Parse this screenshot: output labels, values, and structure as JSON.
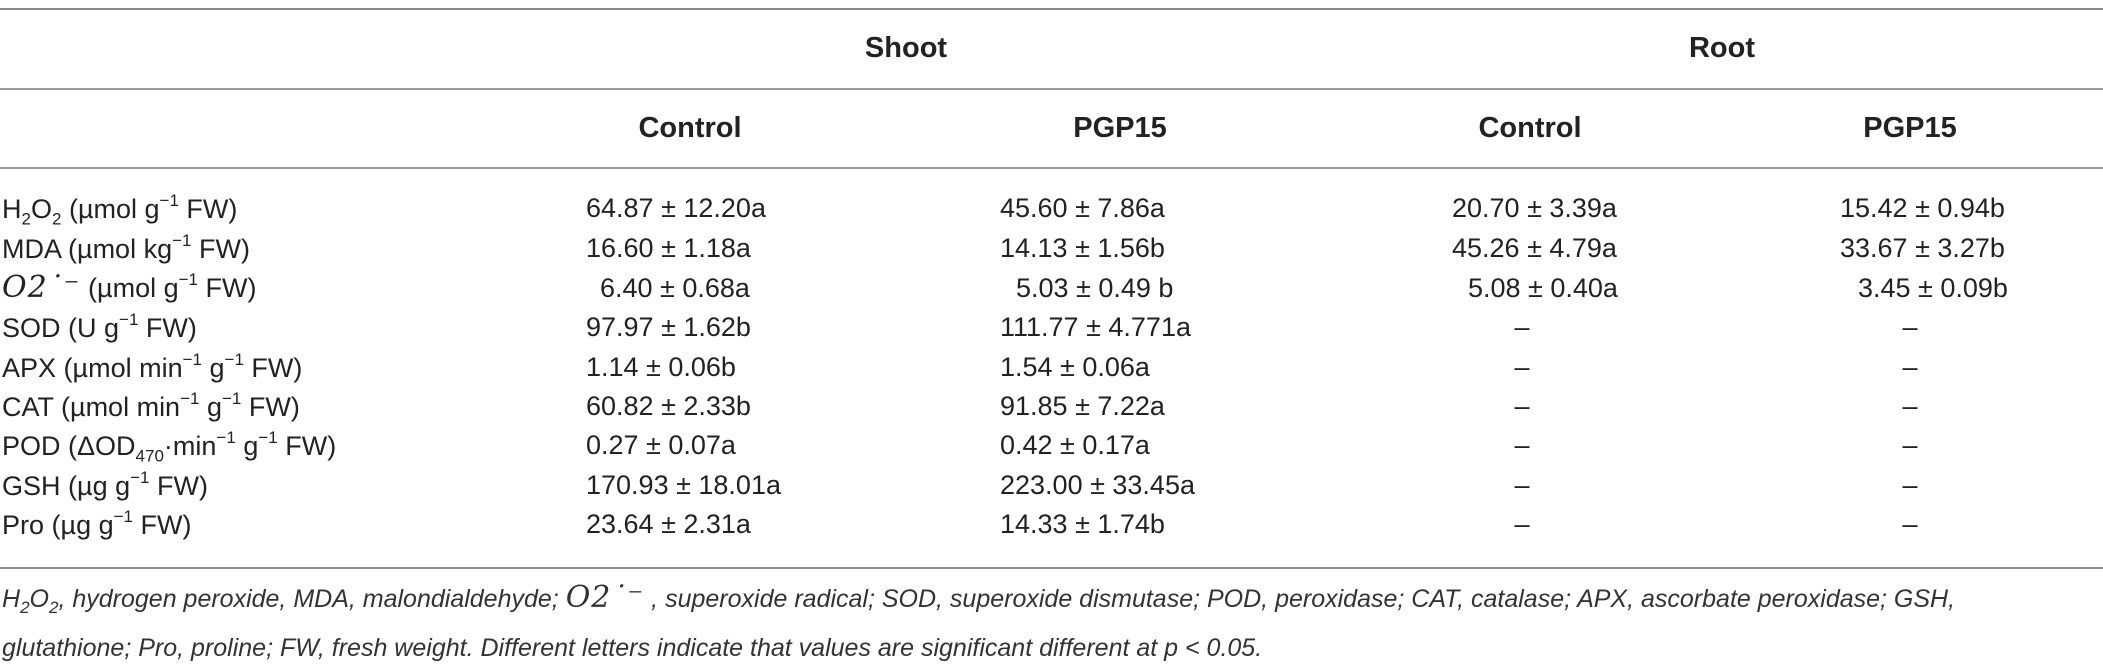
{
  "table": {
    "group_headers": [
      "Shoot",
      "Root"
    ],
    "column_headers": [
      "Control",
      "PGP15",
      "Control",
      "PGP15"
    ],
    "rows": [
      {
        "prefix": "H",
        "sub": "2",
        "mid": "O",
        "sub2": "2",
        "unit_a": " (µmol g",
        "sup": "−1",
        "unit_b": " FW)",
        "values": [
          "64.87 ± 12.20a",
          "45.60 ± 7.86a",
          "20.70 ± 3.39a",
          "15.42 ± 0.94b"
        ]
      },
      {
        "prefix": "MDA",
        "unit_a": " (µmol kg",
        "sup": "−1",
        "unit_b": " FW)",
        "values": [
          "16.60 ± 1.18a",
          "14.13 ± 1.56b",
          "45.26 ± 4.79a",
          "33.67 ± 3.27b"
        ]
      },
      {
        "prefix": "O2˙⁻",
        "unit_a": "  (µmol g",
        "sup": "−1",
        "unit_b": " FW)",
        "values": [
          "6.40 ± 0.68a",
          "5.03 ± 0.49 b",
          "5.08 ± 0.40a",
          "3.45 ± 0.09b"
        ]
      },
      {
        "prefix": "SOD",
        "unit_a": " (U g",
        "sup": "−1",
        "unit_b": " FW)",
        "values": [
          "97.97 ± 1.62b",
          "111.77 ± 4.771a",
          "–",
          "–"
        ]
      },
      {
        "prefix": "APX",
        "unit_a": " (µmol min",
        "sup": "−1",
        "unit_b": " g",
        "sup2": "−1",
        "unit_c": " FW)",
        "values": [
          "1.14 ± 0.06b",
          "1.54 ± 0.06a",
          "–",
          "–"
        ]
      },
      {
        "prefix": "CAT",
        "unit_a": " (µmol min",
        "sup": "−1",
        "unit_b": " g",
        "sup2": "−1",
        "unit_c": " FW)",
        "values": [
          "60.82 ± 2.33b",
          "91.85 ± 7.22a",
          "–",
          "–"
        ]
      },
      {
        "prefix": "POD",
        "unit_a": " (ΔOD",
        "sub": "470",
        "unit_b": "·min",
        "sup": "−1",
        "unit_c": " g",
        "sup2": "−1",
        "unit_d": " FW)",
        "values": [
          "0.27 ± 0.07a",
          "0.42 ± 0.17a",
          "–",
          "–"
        ]
      },
      {
        "prefix": "GSH",
        "unit_a": " (µg g",
        "sup": "−1",
        "unit_b": " FW)",
        "values": [
          "170.93 ± 18.01a",
          "223.00 ± 33.45a",
          "–",
          "–"
        ]
      },
      {
        "prefix": "Pro",
        "unit_a": " (µg g",
        "sup": "−1",
        "unit_b": " FW)",
        "values": [
          "23.64 ± 2.31a",
          "14.33 ± 1.74b",
          "–",
          "–"
        ]
      }
    ]
  },
  "footnote": {
    "part1_a": "H",
    "part1_sub": "2",
    "part1_b": "O",
    "part1_sub2": "2",
    "part1_c": ", hydrogen peroxide, MDA, malondialdehyde; ",
    "radical": "O2˙⁻",
    "part2": " , superoxide radical; SOD, superoxide dismutase; POD, peroxidase; CAT, catalase; APX, ascorbate peroxidase; GSH, glutathione; Pro, proline; FW, fresh weight. Different letters indicate that values are significant different at p < 0.05."
  }
}
